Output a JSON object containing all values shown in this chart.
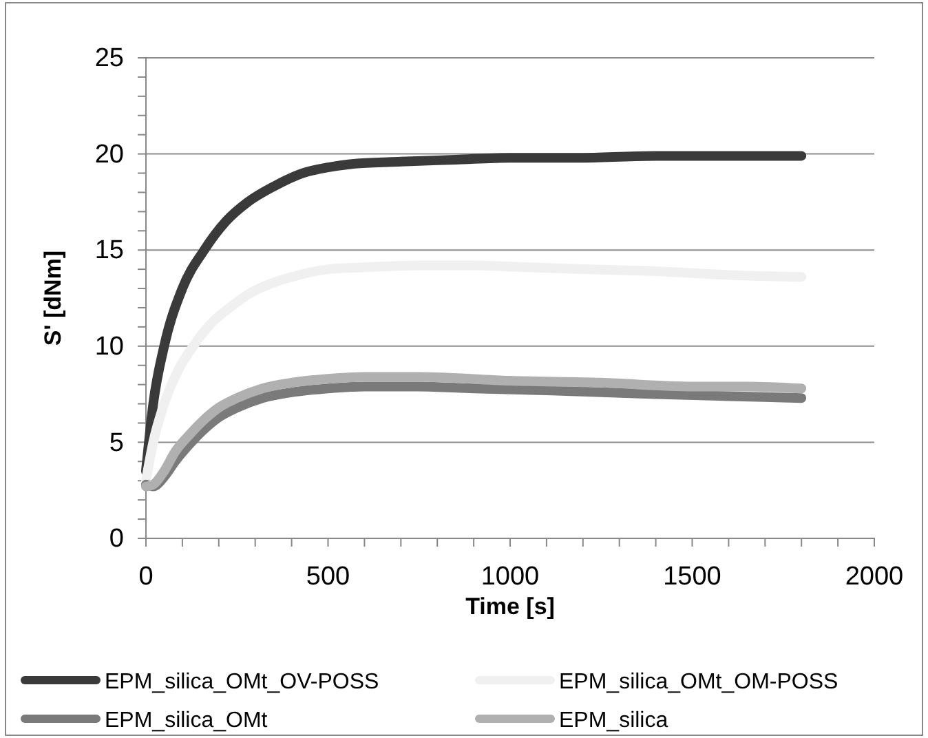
{
  "chart_data": {
    "type": "line",
    "xlabel": "Time [s]",
    "ylabel": "S' [dNm]",
    "xlim": [
      0,
      2000
    ],
    "ylim": [
      0,
      25
    ],
    "xticks": [
      0,
      {
        "value": 100,
        "label": null
      },
      {
        "value": 200,
        "label": null
      },
      {
        "value": 300,
        "label": null
      },
      {
        "value": 400,
        "label": null
      },
      500,
      {
        "value": 600,
        "label": null
      },
      {
        "value": 700,
        "label": null
      },
      {
        "value": 800,
        "label": null
      },
      {
        "value": 900,
        "label": null
      },
      1000,
      {
        "value": 1100,
        "label": null
      },
      {
        "value": 1200,
        "label": null
      },
      {
        "value": 1300,
        "label": null
      },
      {
        "value": 1400,
        "label": null
      },
      1500,
      {
        "value": 1600,
        "label": null
      },
      {
        "value": 1700,
        "label": null
      },
      {
        "value": 1800,
        "label": null
      },
      {
        "value": 1900,
        "label": null
      },
      2000
    ],
    "yticks": [
      0,
      {
        "value": 1,
        "label": null
      },
      {
        "value": 2,
        "label": null
      },
      {
        "value": 3,
        "label": null
      },
      {
        "value": 4,
        "label": null
      },
      5,
      {
        "value": 6,
        "label": null
      },
      {
        "value": 7,
        "label": null
      },
      {
        "value": 8,
        "label": null
      },
      {
        "value": 9,
        "label": null
      },
      10,
      {
        "value": 11,
        "label": null
      },
      {
        "value": 12,
        "label": null
      },
      {
        "value": 13,
        "label": null
      },
      {
        "value": 14,
        "label": null
      },
      15,
      {
        "value": 16,
        "label": null
      },
      {
        "value": 17,
        "label": null
      },
      {
        "value": 18,
        "label": null
      },
      {
        "value": 19,
        "label": null
      },
      20,
      {
        "value": 21,
        "label": null
      },
      {
        "value": 22,
        "label": null
      },
      {
        "value": 23,
        "label": null
      },
      {
        "value": 24,
        "label": null
      },
      25
    ],
    "grid": "y",
    "legend": "bottom",
    "series": [
      {
        "name": "EPM_silica_OMt_OV-POSS",
        "color": "#3a3a3a",
        "x": [
          0,
          20,
          50,
          100,
          160,
          220,
          280,
          350,
          430,
          500,
          580,
          700,
          850,
          1000,
          1200,
          1400,
          1600,
          1800
        ],
        "values": [
          3.5,
          7,
          10,
          13,
          15,
          16.5,
          17.5,
          18.3,
          19,
          19.3,
          19.5,
          19.6,
          19.7,
          19.8,
          19.8,
          19.9,
          19.9,
          19.9
        ]
      },
      {
        "name": "EPM_silica_OMt_OM-POSS",
        "color": "#f0f0f0",
        "x": [
          0,
          20,
          50,
          90,
          130,
          180,
          230,
          290,
          350,
          420,
          500,
          600,
          750,
          900,
          1050,
          1200,
          1400,
          1600,
          1800
        ],
        "values": [
          3,
          5,
          7,
          8.8,
          10,
          11.2,
          12,
          12.8,
          13.3,
          13.7,
          14,
          14.1,
          14.2,
          14.2,
          14.1,
          14,
          13.9,
          13.7,
          13.6
        ]
      },
      {
        "name": "EPM_silica_OMt",
        "color": "#7a7a7a",
        "x": [
          0,
          20,
          50,
          80,
          120,
          150,
          200,
          250,
          320,
          400,
          500,
          600,
          750,
          900,
          1100,
          1400,
          1600,
          1800
        ],
        "values": [
          2.8,
          2.7,
          3.2,
          4,
          4.9,
          5.5,
          6.3,
          6.8,
          7.3,
          7.6,
          7.8,
          7.9,
          7.9,
          7.8,
          7.7,
          7.5,
          7.4,
          7.3
        ]
      },
      {
        "name": "EPM_silica",
        "color": "#b0b0b0",
        "x": [
          0,
          20,
          50,
          80,
          120,
          150,
          200,
          250,
          320,
          400,
          500,
          600,
          750,
          1000,
          1250,
          1500,
          1650,
          1800
        ],
        "values": [
          2.7,
          2.8,
          3.5,
          4.5,
          5.4,
          6,
          6.8,
          7.3,
          7.8,
          8.1,
          8.3,
          8.4,
          8.4,
          8.2,
          8.1,
          7.9,
          7.9,
          7.8
        ]
      }
    ]
  }
}
